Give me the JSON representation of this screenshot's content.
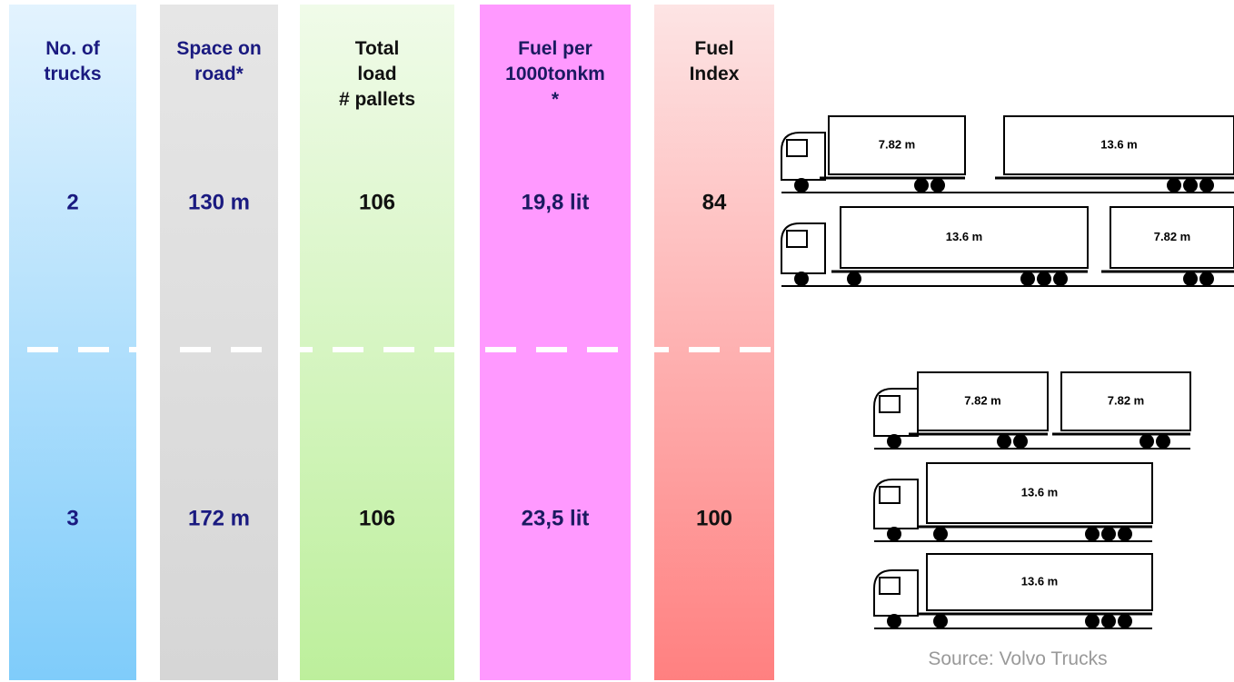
{
  "columns": [
    {
      "header": [
        "No. of",
        "trucks"
      ],
      "values": [
        "2",
        "3"
      ]
    },
    {
      "header": [
        "Space on",
        "road*"
      ],
      "values": [
        "130 m",
        "172 m"
      ]
    },
    {
      "header": [
        "Total",
        "load",
        "# pallets"
      ],
      "values": [
        "106",
        "106"
      ]
    },
    {
      "header": [
        "Fuel per",
        "1000tonkm",
        "*"
      ],
      "values": [
        "19,8 lit",
        "23,5 lit"
      ]
    },
    {
      "header": [
        "Fuel",
        "Index"
      ],
      "values": [
        "84",
        "100"
      ]
    }
  ],
  "trucks": [
    {
      "units": [
        "7.82 m",
        "13.6 m"
      ]
    },
    {
      "units": [
        "13.6 m",
        "7.82 m"
      ]
    },
    {
      "units": [
        "7.82 m",
        "7.82 m"
      ]
    },
    {
      "units": [
        "13.6 m"
      ]
    },
    {
      "units": [
        "13.6 m"
      ]
    }
  ],
  "source": "Source: Volvo Trucks"
}
